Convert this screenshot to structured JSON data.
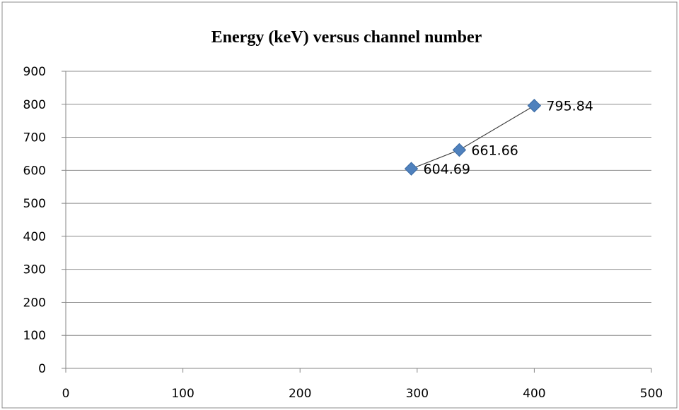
{
  "chart_data": {
    "type": "scatter",
    "title": "Energy (keV)  versus channel number",
    "xlabel": "",
    "ylabel": "",
    "xlim": [
      0,
      500
    ],
    "ylim": [
      0,
      900
    ],
    "x_ticks": [
      "0",
      "100",
      "200",
      "300",
      "400",
      "500"
    ],
    "y_ticks": [
      "0",
      "100",
      "200",
      "300",
      "400",
      "500",
      "600",
      "700",
      "800",
      "900"
    ],
    "grid": "horizontal",
    "legend": "none",
    "trendline": true,
    "series": [
      {
        "points": [
          {
            "x": 295,
            "y": 604.69,
            "label": "604.69"
          },
          {
            "x": 336,
            "y": 661.66,
            "label": "661.66"
          },
          {
            "x": 400,
            "y": 795.84,
            "label": "795.84"
          }
        ]
      }
    ],
    "colors": {
      "marker": "#4f81bd",
      "marker_edge": "#3a6aa3",
      "trendline": "#404040",
      "grid": "#8c8c8c",
      "axis": "#868686",
      "border": "#8c8c8c"
    }
  }
}
